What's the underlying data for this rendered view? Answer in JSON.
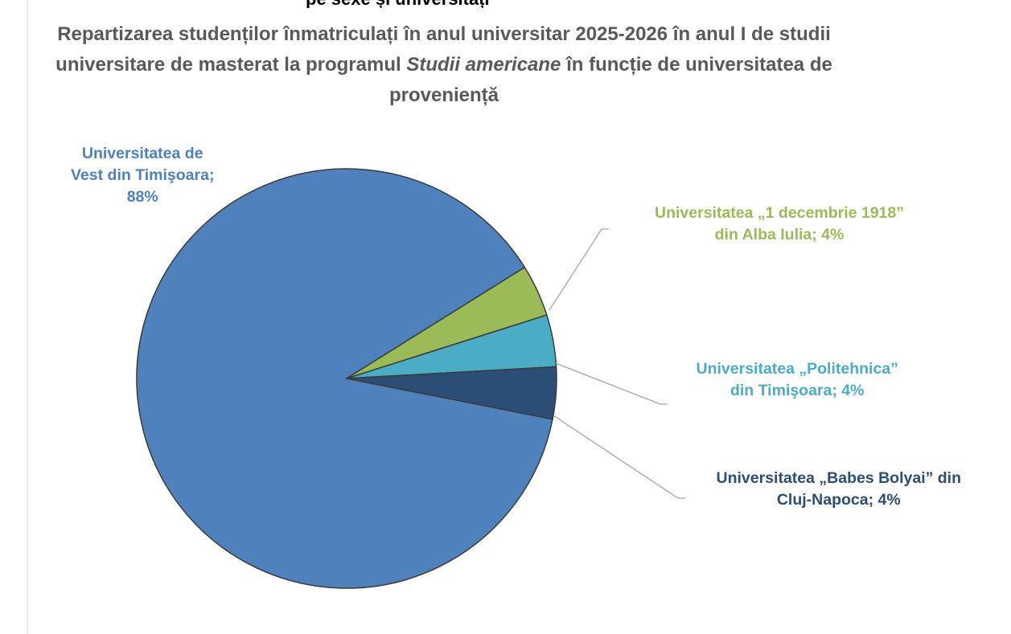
{
  "cut_header": "pe sexe și universități",
  "chart_data": {
    "type": "pie",
    "title_parts": {
      "before": "Repartizarea studenților înmatriculați în anul universitar 2025-2026 în anul I de studii universitare de masterat la programul ",
      "italic": "Studii americane",
      "after": " în funcție de universitatea de proveniență"
    },
    "slices": [
      {
        "name": "Universitatea de Vest din Timişoara",
        "value": 88,
        "label": "Universitatea de Vest din Timişoara; 88%",
        "color": "#4f81bd"
      },
      {
        "name": "Universitatea „1 decembrie 1918” din Alba Iulia",
        "value": 4,
        "label": "Universitatea „1 decembrie 1918” din Alba Iulia; 4%",
        "color": "#9bbb59"
      },
      {
        "name": "Universitatea „Politehnica” din Timişoara",
        "value": 4,
        "label": "Universitatea „Politehnica” din Timişoara; 4%",
        "color": "#4bacc6"
      },
      {
        "name": "Universitatea „Babes Bolyai” din Cluj-Napoca",
        "value": 4,
        "label": "Universitatea „Babes Bolyai” din Cluj-Napoca; 4%",
        "color": "#2c4d75"
      }
    ],
    "label_lines": [
      [
        "Universitatea de",
        "Vest din Timişoara;",
        "88%"
      ],
      [
        "Universitatea „1 decembrie 1918”",
        "din Alba Iulia; 4%"
      ],
      [
        "Universitatea „Politehnica”",
        "din Timişoara; 4%"
      ],
      [
        "Universitatea „Babes Bolyai” din",
        "Cluj-Napoca; 4%"
      ]
    ],
    "legend": "none"
  }
}
